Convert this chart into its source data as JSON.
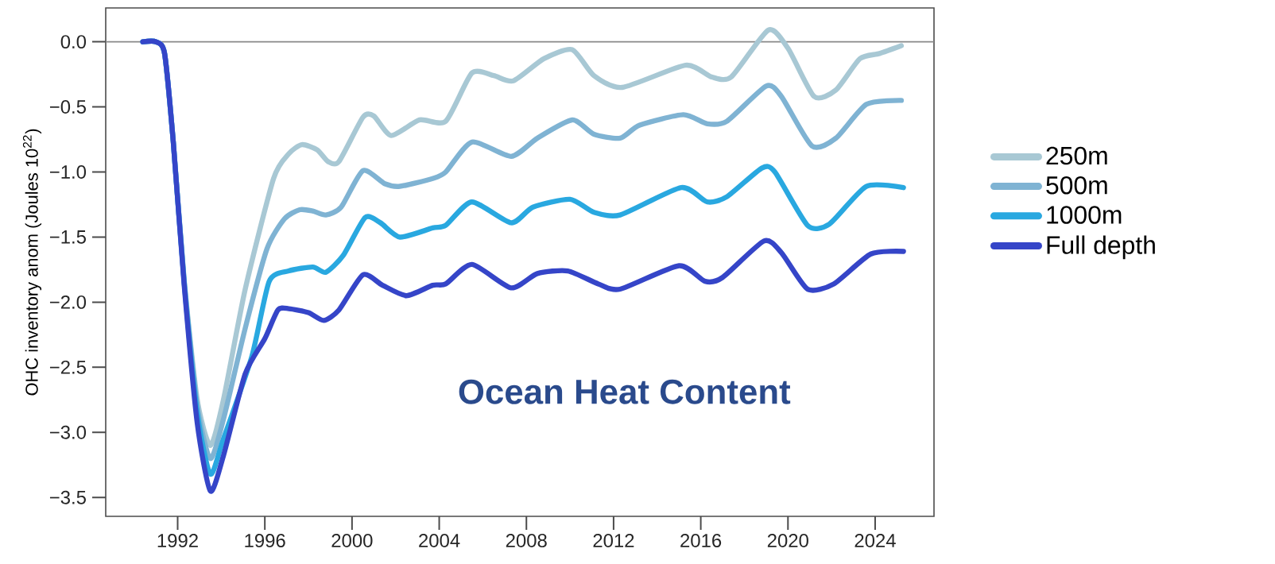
{
  "chart_data": {
    "type": "line",
    "ylabel": "OHC inventory anom (Joules 10$^{22}$)",
    "annotations": [
      "Ocean Heat Content"
    ],
    "legend": "right",
    "xlim": [
      1988.7,
      2026.7
    ],
    "ylim": [
      -3.645,
      0.26
    ],
    "xticks": [
      1992,
      1996,
      2000,
      2004,
      2008,
      2012,
      2016,
      2020,
      2024
    ],
    "yticks": [
      {
        "value": 0,
        "label": "0.0"
      },
      {
        "value": -0.5,
        "label": "−0.5"
      },
      {
        "value": -1,
        "label": "−1.0"
      },
      {
        "value": -1.5,
        "label": "−1.5"
      },
      {
        "value": -2,
        "label": "−2.0"
      },
      {
        "value": -2.5,
        "label": "−2.5"
      },
      {
        "value": -3,
        "label": "−3.0"
      },
      {
        "value": -3.5,
        "label": "−3.5"
      }
    ],
    "ref_lines": [
      {
        "axis": "y",
        "value": 0,
        "color": "#888888"
      }
    ],
    "series": [
      {
        "name": "250m",
        "color": "#a8c8d4",
        "x": [
          1990.4,
          1991.0,
          1991.4,
          1991.8,
          1992.3,
          1992.9,
          1993.5,
          1994.1,
          1995.1,
          1996.4,
          1997.1,
          1997.7,
          1998.4,
          1998.9,
          1999.4,
          2000.5,
          2001.0,
          2001.8,
          2003.1,
          2004.3,
          2005.5,
          2006.5,
          2007.4,
          2008.8,
          2010.1,
          2011.1,
          2012.4,
          2015.3,
          2016.5,
          2017.4,
          2019.1,
          2020.0,
          2021.2,
          2022.2,
          2023.3,
          2024.2,
          2025.2
        ],
        "values": [
          0,
          0,
          -0.09,
          -0.77,
          -1.83,
          -2.75,
          -3.1,
          -2.75,
          -1.9,
          -1.05,
          -0.86,
          -0.79,
          -0.83,
          -0.92,
          -0.92,
          -0.58,
          -0.57,
          -0.72,
          -0.6,
          -0.61,
          -0.24,
          -0.26,
          -0.3,
          -0.13,
          -0.06,
          -0.26,
          -0.35,
          -0.18,
          -0.27,
          -0.27,
          0.09,
          -0.05,
          -0.42,
          -0.37,
          -0.13,
          -0.09,
          -0.03
        ]
      },
      {
        "name": "500m",
        "color": "#7fb3d3",
        "x": [
          1990.4,
          1991.0,
          1991.4,
          1991.8,
          1992.3,
          1992.9,
          1993.5,
          1994.1,
          1995.1,
          1996.1,
          1996.9,
          1997.6,
          1998.2,
          1998.8,
          1999.5,
          2000.5,
          2001.5,
          2002.2,
          2003.7,
          2004.3,
          2005.5,
          2007.3,
          2008.5,
          2010.1,
          2011.1,
          2012.3,
          2013.2,
          2015.2,
          2016.3,
          2017.2,
          2019.0,
          2019.7,
          2021.1,
          2022.2,
          2023.6,
          2025.2
        ],
        "values": [
          0,
          0,
          -0.09,
          -0.77,
          -1.84,
          -2.8,
          -3.2,
          -2.9,
          -2.2,
          -1.59,
          -1.36,
          -1.29,
          -1.3,
          -1.33,
          -1.27,
          -0.99,
          -1.09,
          -1.11,
          -1.05,
          -1.0,
          -0.77,
          -0.88,
          -0.74,
          -0.6,
          -0.71,
          -0.74,
          -0.64,
          -0.56,
          -0.63,
          -0.61,
          -0.34,
          -0.42,
          -0.8,
          -0.74,
          -0.48,
          -0.45
        ]
      },
      {
        "name": "1000m",
        "color": "#29a8e0",
        "x": [
          1990.4,
          1991.0,
          1991.4,
          1991.8,
          1992.3,
          1992.9,
          1993.5,
          1994.1,
          1995.4,
          1996.2,
          1997.1,
          1998.2,
          1998.8,
          1999.6,
          2000.6,
          2001.3,
          2002.2,
          2003.7,
          2004.3,
          2005.5,
          2007.3,
          2008.3,
          2010.0,
          2011.1,
          2012.3,
          2015.1,
          2016.3,
          2017.2,
          2018.8,
          2019.4,
          2020.9,
          2021.9,
          2023.6,
          2025.3
        ],
        "values": [
          0,
          0,
          -0.09,
          -0.77,
          -1.85,
          -2.85,
          -3.32,
          -3.05,
          -2.42,
          -1.84,
          -1.76,
          -1.73,
          -1.77,
          -1.64,
          -1.35,
          -1.39,
          -1.5,
          -1.43,
          -1.41,
          -1.23,
          -1.39,
          -1.27,
          -1.21,
          -1.31,
          -1.33,
          -1.12,
          -1.23,
          -1.19,
          -0.97,
          -1.0,
          -1.41,
          -1.4,
          -1.11,
          -1.12
        ]
      },
      {
        "name": "Full depth",
        "color": "#3545c8",
        "x": [
          1990.4,
          1991.0,
          1991.4,
          1991.8,
          1992.3,
          1992.9,
          1993.5,
          1994.1,
          1995.1,
          1996.0,
          1996.6,
          1997.1,
          1998.0,
          1998.7,
          1999.4,
          2000.5,
          2001.4,
          2002.5,
          2003.7,
          2004.3,
          2005.5,
          2007.3,
          2008.5,
          2009.9,
          2011.3,
          2012.3,
          2015.0,
          2016.2,
          2017.0,
          2018.9,
          2019.7,
          2020.9,
          2022.1,
          2023.8,
          2025.3
        ],
        "values": [
          0,
          0,
          -0.09,
          -0.77,
          -1.87,
          -2.93,
          -3.45,
          -3.18,
          -2.55,
          -2.28,
          -2.06,
          -2.05,
          -2.08,
          -2.14,
          -2.06,
          -1.79,
          -1.87,
          -1.95,
          -1.87,
          -1.86,
          -1.71,
          -1.89,
          -1.78,
          -1.76,
          -1.86,
          -1.9,
          -1.72,
          -1.84,
          -1.81,
          -1.53,
          -1.62,
          -1.9,
          -1.86,
          -1.63,
          -1.61
        ]
      }
    ]
  }
}
